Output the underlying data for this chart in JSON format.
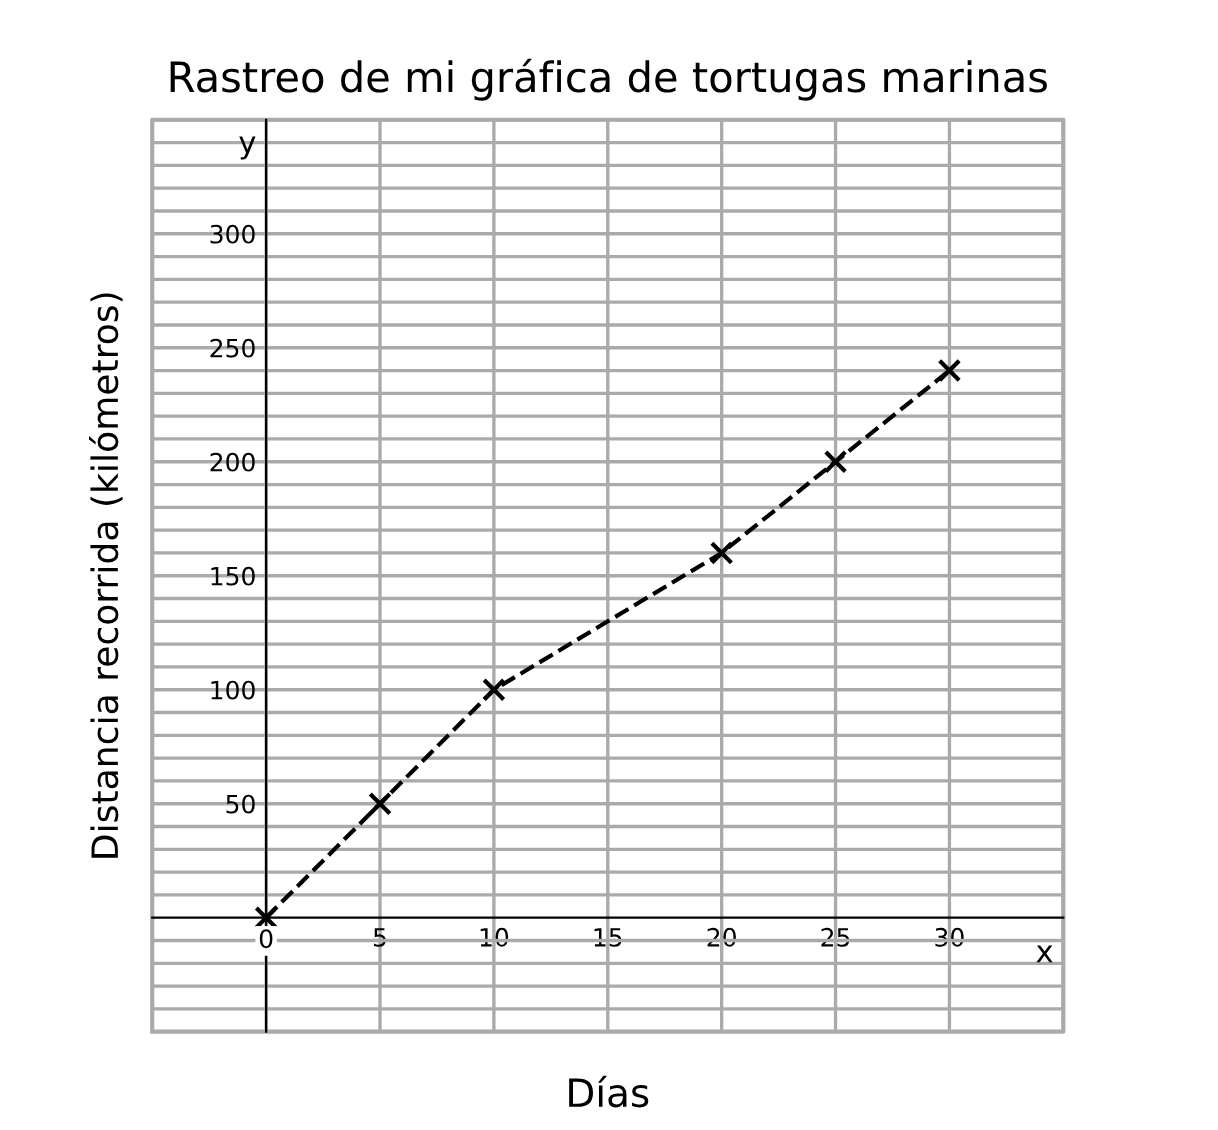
{
  "chart_data": {
    "type": "line",
    "title": "Rastreo de mi gráfica de tortugas marinas",
    "xlabel": "Días",
    "ylabel": "Distancia recorrida (kilómetros)",
    "annotations": [
      "y",
      "x"
    ],
    "series": [
      {
        "color": "#000000",
        "x": [
          0,
          5,
          10,
          20,
          25,
          30
        ],
        "values": [
          0,
          50,
          100,
          160,
          200,
          240
        ]
      }
    ],
    "xlim": [
      -5,
      35
    ],
    "ylim": [
      -50,
      350
    ],
    "xticks": [
      {
        "value": -5,
        "label": null
      },
      {
        "value": 0,
        "label": "0"
      },
      5,
      10,
      15,
      20,
      25,
      30,
      {
        "value": 35,
        "label": null
      }
    ],
    "yticks": [
      {
        "value": -50,
        "label": null
      },
      {
        "value": -40,
        "label": null
      },
      {
        "value": -30,
        "label": null
      },
      {
        "value": -20,
        "label": null
      },
      {
        "value": -10,
        "label": null
      },
      {
        "value": 10,
        "label": null
      },
      {
        "value": 20,
        "label": null
      },
      {
        "value": 30,
        "label": null
      },
      {
        "value": 40,
        "label": null
      },
      50,
      {
        "value": 60,
        "label": null
      },
      {
        "value": 70,
        "label": null
      },
      {
        "value": 80,
        "label": null
      },
      {
        "value": 90,
        "label": null
      },
      100,
      {
        "value": 110,
        "label": null
      },
      {
        "value": 120,
        "label": null
      },
      {
        "value": 130,
        "label": null
      },
      {
        "value": 140,
        "label": null
      },
      150,
      {
        "value": 160,
        "label": null
      },
      {
        "value": 170,
        "label": null
      },
      {
        "value": 180,
        "label": null
      },
      {
        "value": 190,
        "label": null
      },
      200,
      {
        "value": 210,
        "label": null
      },
      {
        "value": 220,
        "label": null
      },
      {
        "value": 230,
        "label": null
      },
      {
        "value": 240,
        "label": null
      },
      250,
      {
        "value": 260,
        "label": null
      },
      {
        "value": 270,
        "label": null
      },
      {
        "value": 280,
        "label": null
      },
      {
        "value": 290,
        "label": null
      },
      300,
      {
        "value": 310,
        "label": null
      },
      {
        "value": 320,
        "label": null
      },
      {
        "value": 330,
        "label": null
      },
      {
        "value": 340,
        "label": null
      },
      {
        "value": 350,
        "label": null
      }
    ],
    "grid": true,
    "marker": "cross",
    "line_style": "dashed"
  }
}
